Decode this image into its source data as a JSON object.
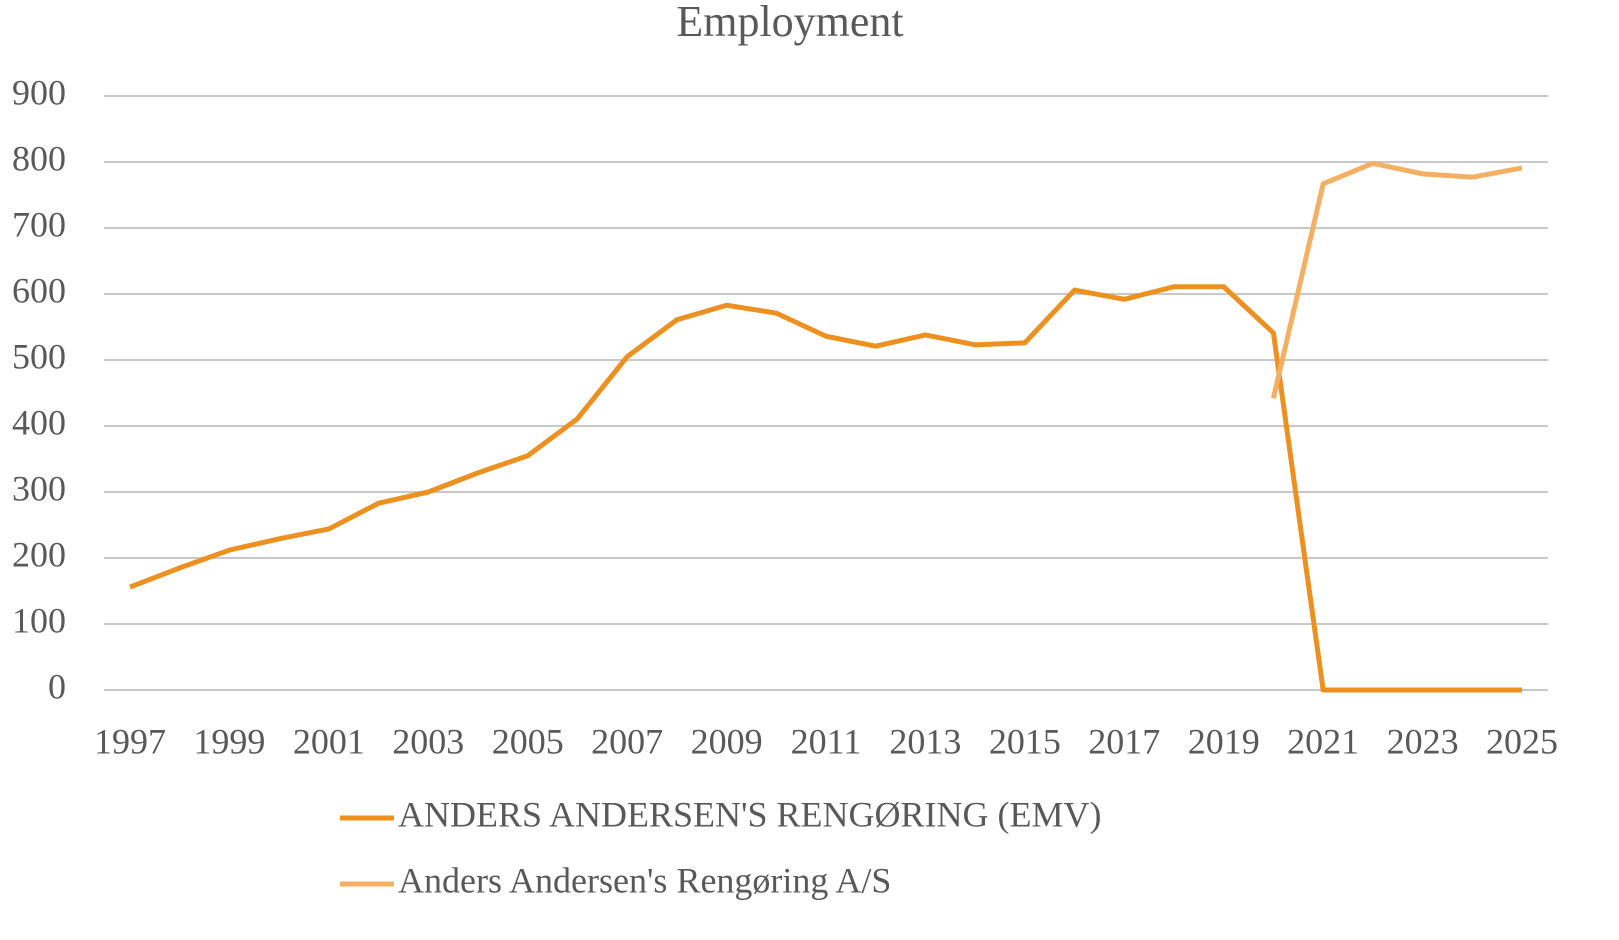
{
  "chart_data": {
    "type": "line",
    "title": "Employment",
    "x": [
      1997,
      1998,
      1999,
      2000,
      2001,
      2002,
      2003,
      2004,
      2005,
      2006,
      2007,
      2008,
      2009,
      2010,
      2011,
      2012,
      2013,
      2014,
      2015,
      2016,
      2017,
      2018,
      2019,
      2020,
      2021,
      2022,
      2023,
      2024,
      2025
    ],
    "series": [
      {
        "name": "ANDERS ANDERSEN'S RENGØRING (EMV)",
        "color": "#ec9020",
        "values": [
          156,
          185,
          212,
          229,
          244,
          283,
          300,
          329,
          355,
          411,
          505,
          561,
          583,
          571,
          536,
          521,
          538,
          523,
          526,
          606,
          592,
          611,
          611,
          541,
          0,
          0,
          0,
          0,
          0
        ]
      },
      {
        "name": "Anders Andersen's Rengøring A/S",
        "color": "#f4b062",
        "values": [
          null,
          null,
          null,
          null,
          null,
          null,
          null,
          null,
          null,
          null,
          null,
          null,
          null,
          null,
          null,
          null,
          null,
          null,
          null,
          null,
          null,
          null,
          null,
          442,
          767,
          798,
          782,
          777,
          791
        ]
      }
    ],
    "xlim": [
      1997,
      2025
    ],
    "xticks": [
      1997,
      1999,
      2001,
      2003,
      2005,
      2007,
      2009,
      2011,
      2013,
      2015,
      2017,
      2019,
      2021,
      2023,
      2025
    ],
    "ylim": [
      0,
      900
    ],
    "yticks": [
      0,
      100,
      200,
      300,
      400,
      500,
      600,
      700,
      800,
      900
    ],
    "grid": true,
    "legend": "bottom"
  }
}
